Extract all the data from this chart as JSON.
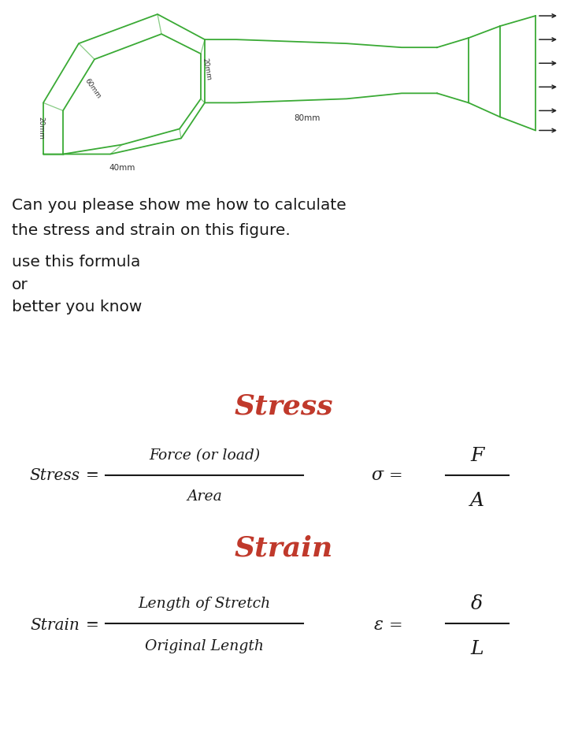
{
  "fig_width": 7.2,
  "fig_height": 9.3,
  "shape_color": "#3aaa35",
  "arrow_color": "#222222",
  "text_color_black": "#1a1a1a",
  "text_color_red": "#c0392b",
  "bg_top": "#d8d8d8",
  "bg_bot": "#c8c8c8",
  "title_stress": "Stress",
  "title_strain": "Strain",
  "line1": "Can you please show me how to calculate",
  "line2": "the stress and strain on this figure.",
  "line3": "use this formula",
  "line4": "or",
  "line5": "better you know",
  "stress_num": "Force (or load)",
  "stress_den": "Area",
  "sigma_num": "F",
  "sigma_den": "A",
  "strain_num": "Length of Stretch",
  "strain_den": "Original Length",
  "epsilon_num": "δ",
  "epsilon_den": "L",
  "label_60mm": "60mm",
  "label_20mm_left": "20mm",
  "label_20mm_top": "20mm",
  "label_80mm": "80mm",
  "label_40mm": "40mm"
}
